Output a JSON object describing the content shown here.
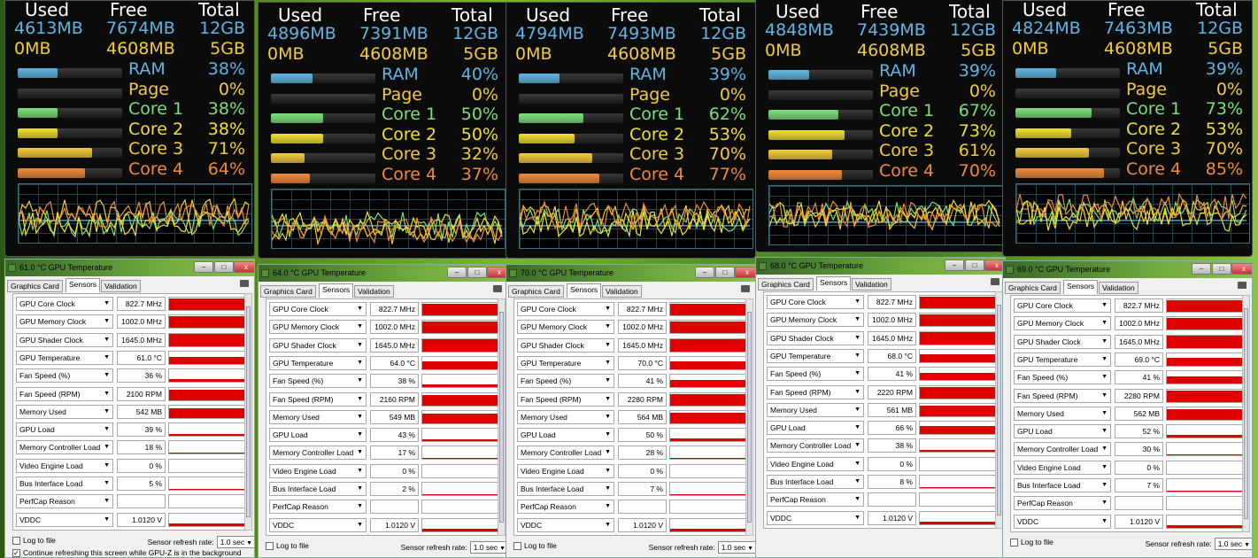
{
  "panels": [
    {
      "header": {
        "used": "Used",
        "free": "Free",
        "total": "Total"
      },
      "mem1": {
        "used": "4613MB",
        "free": "7674MB",
        "total": "12GB"
      },
      "mem2": {
        "used": "0MB",
        "free": "4608MB",
        "total": "5GB"
      },
      "meters": [
        {
          "label": "RAM",
          "pct": "38%",
          "v": 0.38,
          "color": "#5fb6e4"
        },
        {
          "label": "Page",
          "pct": "0%",
          "v": 0,
          "color": "#f4cc3a"
        },
        {
          "label": "Core 1",
          "pct": "38%",
          "v": 0.38,
          "color": "#7ce07a"
        },
        {
          "label": "Core 2",
          "pct": "38%",
          "v": 0.38,
          "color": "#f2e030"
        },
        {
          "label": "Core 3",
          "pct": "71%",
          "v": 0.71,
          "color": "#f4cc3a"
        },
        {
          "label": "Core 4",
          "pct": "64%",
          "v": 0.64,
          "color": "#f08a3a"
        }
      ],
      "gpuz": {
        "title": "61.0 °C GPU Temperature",
        "tabs": [
          "Graphics Card",
          "Sensors",
          "Validation"
        ],
        "sensors": [
          {
            "name": "GPU Core Clock",
            "value": "822.7 MHz",
            "v": 0.95
          },
          {
            "name": "GPU Memory Clock",
            "value": "1002.0 MHz",
            "v": 0.95
          },
          {
            "name": "GPU Shader Clock",
            "value": "1645.0 MHz",
            "v": 0.95
          },
          {
            "name": "GPU Temperature",
            "value": "61.0 °C",
            "v": 0.6
          },
          {
            "name": "Fan Speed (%)",
            "value": "36 %",
            "v": 0.55
          },
          {
            "name": "Fan Speed (RPM)",
            "value": "2100 RPM",
            "v": 0.85
          },
          {
            "name": "Memory Used",
            "value": "542 MB",
            "v": 0.8
          },
          {
            "name": "GPU Load",
            "value": "39 %",
            "v": 0.39
          },
          {
            "name": "Memory Controller Load",
            "value": "18 %",
            "v": 0.18
          },
          {
            "name": "Video Engine Load",
            "value": "0 %",
            "v": 0
          },
          {
            "name": "Bus Interface Load",
            "value": "5 %",
            "v": 0.05
          },
          {
            "name": "PerfCap Reason",
            "value": "",
            "v": 0
          },
          {
            "name": "VDDC",
            "value": "1.0120 V",
            "v": 0.4
          }
        ],
        "log": "Log to file",
        "rate_label": "Sensor refresh rate:",
        "rate": "1.0 sec",
        "continue": "Continue refreshing this screen while GPU-Z is in the background"
      }
    },
    {
      "header": {
        "used": "Used",
        "free": "Free",
        "total": "Total"
      },
      "mem1": {
        "used": "4896MB",
        "free": "7391MB",
        "total": "12GB"
      },
      "mem2": {
        "used": "0MB",
        "free": "4608MB",
        "total": "5GB"
      },
      "meters": [
        {
          "label": "RAM",
          "pct": "40%",
          "v": 0.4,
          "color": "#5fb6e4"
        },
        {
          "label": "Page",
          "pct": "0%",
          "v": 0,
          "color": "#f4cc3a"
        },
        {
          "label": "Core 1",
          "pct": "50%",
          "v": 0.5,
          "color": "#7ce07a"
        },
        {
          "label": "Core 2",
          "pct": "50%",
          "v": 0.5,
          "color": "#f2e030"
        },
        {
          "label": "Core 3",
          "pct": "32%",
          "v": 0.32,
          "color": "#f4cc3a"
        },
        {
          "label": "Core 4",
          "pct": "37%",
          "v": 0.37,
          "color": "#f08a3a"
        }
      ],
      "gpuz": {
        "title": "64.0 °C GPU Temperature",
        "tabs": [
          "Graphics Card",
          "Sensors",
          "Validation"
        ],
        "sensors": [
          {
            "name": "GPU Core Clock",
            "value": "822.7 MHz",
            "v": 0.95
          },
          {
            "name": "GPU Memory Clock",
            "value": "1002.0 MHz",
            "v": 0.95
          },
          {
            "name": "GPU Shader Clock",
            "value": "1645.0 MHz",
            "v": 0.95
          },
          {
            "name": "GPU Temperature",
            "value": "64.0 °C",
            "v": 0.62
          },
          {
            "name": "Fan Speed (%)",
            "value": "38 %",
            "v": 0.55
          },
          {
            "name": "Fan Speed (RPM)",
            "value": "2160 RPM",
            "v": 0.85
          },
          {
            "name": "Memory Used",
            "value": "549 MB",
            "v": 0.8
          },
          {
            "name": "GPU Load",
            "value": "43 %",
            "v": 0.43
          },
          {
            "name": "Memory Controller Load",
            "value": "17 %",
            "v": 0.17
          },
          {
            "name": "Video Engine Load",
            "value": "0 %",
            "v": 0
          },
          {
            "name": "Bus Interface Load",
            "value": "2 %",
            "v": 0.02
          },
          {
            "name": "PerfCap Reason",
            "value": "",
            "v": 0
          },
          {
            "name": "VDDC",
            "value": "1.0120 V",
            "v": 0.4
          }
        ],
        "log": "Log to file",
        "rate_label": "Sensor refresh rate:",
        "rate": "1.0 sec",
        "continue": ""
      }
    },
    {
      "header": {
        "used": "Used",
        "free": "Free",
        "total": "Total"
      },
      "mem1": {
        "used": "4794MB",
        "free": "7493MB",
        "total": "12GB"
      },
      "mem2": {
        "used": "0MB",
        "free": "4608MB",
        "total": "5GB"
      },
      "meters": [
        {
          "label": "RAM",
          "pct": "39%",
          "v": 0.39,
          "color": "#5fb6e4"
        },
        {
          "label": "Page",
          "pct": "0%",
          "v": 0,
          "color": "#f4cc3a"
        },
        {
          "label": "Core 1",
          "pct": "62%",
          "v": 0.62,
          "color": "#7ce07a"
        },
        {
          "label": "Core 2",
          "pct": "53%",
          "v": 0.53,
          "color": "#f2e030"
        },
        {
          "label": "Core 3",
          "pct": "70%",
          "v": 0.7,
          "color": "#f4cc3a"
        },
        {
          "label": "Core 4",
          "pct": "77%",
          "v": 0.77,
          "color": "#f08a3a"
        }
      ],
      "gpuz": {
        "title": "70.0 °C GPU Temperature",
        "tabs": [
          "Graphics Card",
          "Sensors",
          "Validation"
        ],
        "sensors": [
          {
            "name": "GPU Core Clock",
            "value": "822.7 MHz",
            "v": 0.95
          },
          {
            "name": "GPU Memory Clock",
            "value": "1002.0 MHz",
            "v": 0.95
          },
          {
            "name": "GPU Shader Clock",
            "value": "1645.0 MHz",
            "v": 0.95
          },
          {
            "name": "GPU Temperature",
            "value": "70.0 °C",
            "v": 0.66
          },
          {
            "name": "Fan Speed (%)",
            "value": "41 %",
            "v": 0.6
          },
          {
            "name": "Fan Speed (RPM)",
            "value": "2280 RPM",
            "v": 0.88
          },
          {
            "name": "Memory Used",
            "value": "564 MB",
            "v": 0.82
          },
          {
            "name": "GPU Load",
            "value": "50 %",
            "v": 0.5
          },
          {
            "name": "Memory Controller Load",
            "value": "28 %",
            "v": 0.28
          },
          {
            "name": "Video Engine Load",
            "value": "0 %",
            "v": 0
          },
          {
            "name": "Bus Interface Load",
            "value": "7 %",
            "v": 0.07
          },
          {
            "name": "PerfCap Reason",
            "value": "",
            "v": 0
          },
          {
            "name": "VDDC",
            "value": "1.0120 V",
            "v": 0.4
          }
        ],
        "log": "Log to file",
        "rate_label": "Sensor refresh rate:",
        "rate": "1.0 sec",
        "continue": ""
      }
    },
    {
      "header": {
        "used": "Used",
        "free": "Free",
        "total": "Total"
      },
      "mem1": {
        "used": "4848MB",
        "free": "7439MB",
        "total": "12GB"
      },
      "mem2": {
        "used": "0MB",
        "free": "4608MB",
        "total": "5GB"
      },
      "meters": [
        {
          "label": "RAM",
          "pct": "39%",
          "v": 0.39,
          "color": "#5fb6e4"
        },
        {
          "label": "Page",
          "pct": "0%",
          "v": 0,
          "color": "#f4cc3a"
        },
        {
          "label": "Core 1",
          "pct": "67%",
          "v": 0.67,
          "color": "#7ce07a"
        },
        {
          "label": "Core 2",
          "pct": "73%",
          "v": 0.73,
          "color": "#f2e030"
        },
        {
          "label": "Core 3",
          "pct": "61%",
          "v": 0.61,
          "color": "#f4cc3a"
        },
        {
          "label": "Core 4",
          "pct": "70%",
          "v": 0.7,
          "color": "#f08a3a"
        }
      ],
      "gpuz": {
        "title": "68.0 °C GPU Temperature",
        "tabs": [
          "Graphics Card",
          "Sensors",
          "Validation"
        ],
        "sensors": [
          {
            "name": "GPU Core Clock",
            "value": "822.7 MHz",
            "v": 0.95
          },
          {
            "name": "GPU Memory Clock",
            "value": "1002.0 MHz",
            "v": 0.95
          },
          {
            "name": "GPU Shader Clock",
            "value": "1645.0 MHz",
            "v": 0.95
          },
          {
            "name": "GPU Temperature",
            "value": "68.0 °C",
            "v": 0.65
          },
          {
            "name": "Fan Speed (%)",
            "value": "41 %",
            "v": 0.6
          },
          {
            "name": "Fan Speed (RPM)",
            "value": "2220 RPM",
            "v": 0.87
          },
          {
            "name": "Memory Used",
            "value": "561 MB",
            "v": 0.82
          },
          {
            "name": "GPU Load",
            "value": "66 %",
            "v": 0.66
          },
          {
            "name": "Memory Controller Load",
            "value": "38 %",
            "v": 0.38
          },
          {
            "name": "Video Engine Load",
            "value": "0 %",
            "v": 0
          },
          {
            "name": "Bus Interface Load",
            "value": "8 %",
            "v": 0.08
          },
          {
            "name": "PerfCap Reason",
            "value": "",
            "v": 0
          },
          {
            "name": "VDDC",
            "value": "1.0120 V",
            "v": 0.4
          }
        ],
        "log": "",
        "rate_label": "",
        "rate": "",
        "continue": ""
      }
    },
    {
      "header": {
        "used": "Used",
        "free": "Free",
        "total": "Total"
      },
      "mem1": {
        "used": "4824MB",
        "free": "7463MB",
        "total": "12GB"
      },
      "mem2": {
        "used": "0MB",
        "free": "4608MB",
        "total": "5GB"
      },
      "meters": [
        {
          "label": "RAM",
          "pct": "39%",
          "v": 0.39,
          "color": "#5fb6e4"
        },
        {
          "label": "Page",
          "pct": "0%",
          "v": 0,
          "color": "#f4cc3a"
        },
        {
          "label": "Core 1",
          "pct": "73%",
          "v": 0.73,
          "color": "#7ce07a"
        },
        {
          "label": "Core 2",
          "pct": "53%",
          "v": 0.53,
          "color": "#f2e030"
        },
        {
          "label": "Core 3",
          "pct": "70%",
          "v": 0.7,
          "color": "#f4cc3a"
        },
        {
          "label": "Core 4",
          "pct": "85%",
          "v": 0.85,
          "color": "#f08a3a"
        }
      ],
      "gpuz": {
        "title": "69.0 °C GPU Temperature",
        "tabs": [
          "Graphics Card",
          "Sensors",
          "Validation"
        ],
        "sensors": [
          {
            "name": "GPU Core Clock",
            "value": "822.7 MHz",
            "v": 0.95
          },
          {
            "name": "GPU Memory Clock",
            "value": "1002.0 MHz",
            "v": 0.95
          },
          {
            "name": "GPU Shader Clock",
            "value": "1645.0 MHz",
            "v": 0.95
          },
          {
            "name": "GPU Temperature",
            "value": "69.0 °C",
            "v": 0.65
          },
          {
            "name": "Fan Speed (%)",
            "value": "41 %",
            "v": 0.6
          },
          {
            "name": "Fan Speed (RPM)",
            "value": "2280 RPM",
            "v": 0.88
          },
          {
            "name": "Memory Used",
            "value": "562 MB",
            "v": 0.82
          },
          {
            "name": "GPU Load",
            "value": "52 %",
            "v": 0.52
          },
          {
            "name": "Memory Controller Load",
            "value": "30 %",
            "v": 0.3
          },
          {
            "name": "Video Engine Load",
            "value": "0 %",
            "v": 0
          },
          {
            "name": "Bus Interface Load",
            "value": "7 %",
            "v": 0.07
          },
          {
            "name": "PerfCap Reason",
            "value": "",
            "v": 0
          },
          {
            "name": "VDDC",
            "value": "1.0120 V",
            "v": 0.4
          }
        ],
        "log": "Log to file",
        "rate_label": "Sensor refresh rate:",
        "rate": "1.0 sec",
        "continue": ""
      }
    }
  ],
  "colors": {
    "ram": "#5fb6e4",
    "page": "#f4cc3a",
    "core1": "#7ce07a",
    "core2": "#f2e030",
    "core3": "#f4cc3a",
    "core4": "#f08a3a",
    "sensor_graph": "#e00000",
    "window_accent": "#6ea83e"
  },
  "icons": {
    "window_icon": "gpu-z-icon",
    "camera": "camera-icon",
    "close": "close-icon",
    "minimize": "minimize-icon",
    "maximize": "maximize-icon",
    "dropdown": "chevron-down-icon"
  }
}
